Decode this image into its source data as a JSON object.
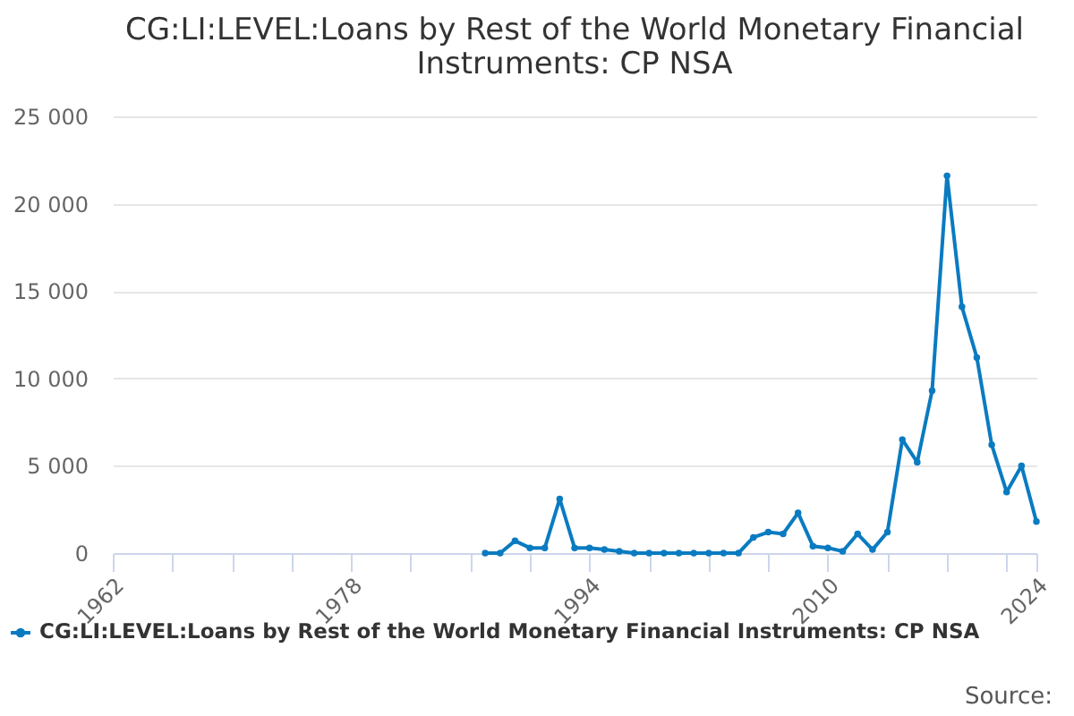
{
  "chart_data": {
    "type": "line",
    "title": "CG:LI:LEVEL:Loans by Rest of the World Monetary Financial Instruments: CP NSA",
    "x": [
      1987,
      1988,
      1989,
      1990,
      1991,
      1992,
      1993,
      1994,
      1995,
      1996,
      1997,
      1998,
      1999,
      2000,
      2001,
      2002,
      2003,
      2004,
      2005,
      2006,
      2007,
      2008,
      2009,
      2010,
      2011,
      2012,
      2013,
      2014,
      2015,
      2016,
      2017,
      2018,
      2019,
      2020,
      2021,
      2022,
      2023,
      2024
    ],
    "series": [
      {
        "name": "CG:LI:LEVEL:Loans by Rest of the World Monetary Financial Instruments: CP NSA",
        "color": "#0a7bc1",
        "values": [
          0,
          0,
          700,
          300,
          300,
          3100,
          300,
          300,
          200,
          100,
          0,
          0,
          0,
          0,
          0,
          0,
          0,
          0,
          900,
          1200,
          1100,
          2300,
          400,
          300,
          100,
          1100,
          200,
          1200,
          6500,
          5200,
          9300,
          21600,
          14100,
          11200,
          6200,
          3500,
          5000,
          1800
        ]
      }
    ],
    "xlim": [
      1962,
      2024
    ],
    "xticks": [
      1962,
      {
        "value": 1966,
        "label": null
      },
      {
        "value": 1970,
        "label": null
      },
      {
        "value": 1974,
        "label": null
      },
      1978,
      {
        "value": 1982,
        "label": null
      },
      {
        "value": 1986,
        "label": null
      },
      {
        "value": 1990,
        "label": null
      },
      1994,
      {
        "value": 1998,
        "label": null
      },
      {
        "value": 2002,
        "label": null
      },
      {
        "value": 2006,
        "label": null
      },
      2010,
      {
        "value": 2014,
        "label": null
      },
      {
        "value": 2018,
        "label": null
      },
      {
        "value": 2022,
        "label": null
      },
      2024
    ],
    "ylim": [
      0,
      25000
    ],
    "yticks": [
      0,
      {
        "value": 5000,
        "label": "5 000"
      },
      {
        "value": 10000,
        "label": "10 000"
      },
      {
        "value": 15000,
        "label": "15 000"
      },
      {
        "value": 20000,
        "label": "20 000"
      },
      {
        "value": 25000,
        "label": "25 000"
      }
    ],
    "grid": "y",
    "legend": "bottom",
    "marker": "circle",
    "line_style": "solid",
    "annotations": [
      "Source:"
    ]
  }
}
